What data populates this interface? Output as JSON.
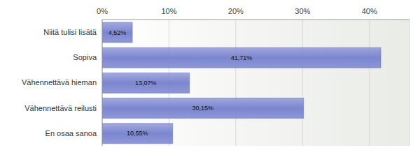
{
  "chart_data": {
    "type": "bar",
    "orientation": "horizontal",
    "categories": [
      "Niitä tulisi lisätä",
      "Sopiva",
      "Vähennettävä hieman",
      "Vähennettävä reilusti",
      "En osaa sanoa"
    ],
    "values": [
      4.52,
      41.71,
      13.07,
      30.15,
      10.55
    ],
    "value_labels": [
      "4,52%",
      "41,71%",
      "13,07%",
      "30,15%",
      "10,55%"
    ],
    "data_labels": true,
    "color": "#7b86d0",
    "xlim": [
      0,
      46
    ],
    "xticks": [
      {
        "value": 0,
        "label": "0%"
      },
      {
        "value": 10,
        "label": "10%"
      },
      {
        "value": 20,
        "label": "20%"
      },
      {
        "value": 30,
        "label": "30%"
      },
      {
        "value": 40,
        "label": "40%"
      }
    ],
    "grid": true
  }
}
